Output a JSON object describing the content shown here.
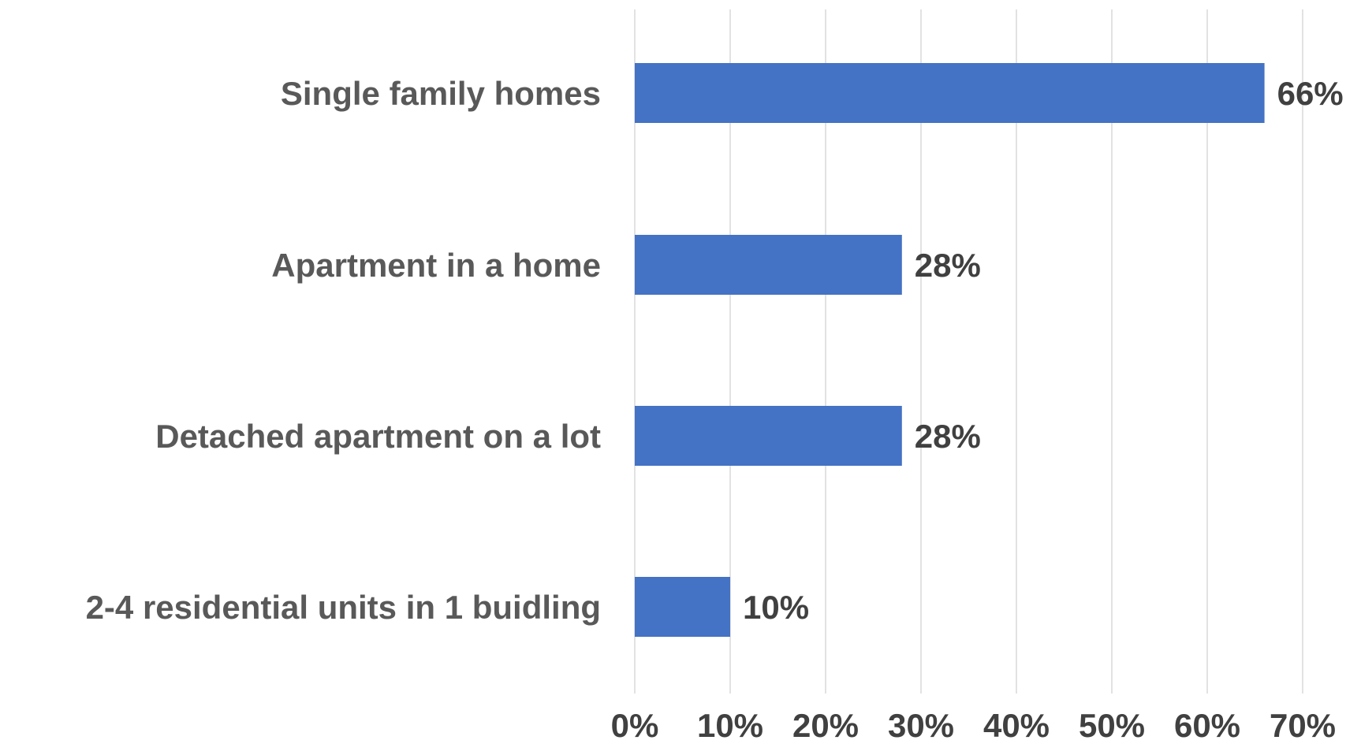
{
  "chart_data": {
    "type": "bar",
    "orientation": "horizontal",
    "categories": [
      "Single family homes",
      "Apartment in a home",
      "Detached apartment on a lot",
      "2-4 residential units in 1 buidling"
    ],
    "values": [
      66,
      28,
      28,
      10
    ],
    "value_labels": [
      "66%",
      "28%",
      "28%",
      "10%"
    ],
    "x_ticks": [
      0,
      10,
      20,
      30,
      40,
      50,
      60,
      70
    ],
    "x_tick_labels": [
      "0%",
      "10%",
      "20%",
      "30%",
      "40%",
      "50%",
      "60%",
      "70%"
    ],
    "xlim": [
      0,
      70
    ],
    "xlabel": "",
    "ylabel": "",
    "grid": "vertical",
    "legend": "none",
    "colors": {
      "bar": "#4472C4",
      "grid": "#D9D9D9",
      "category_text": "#595959",
      "value_text": "#404040"
    }
  }
}
